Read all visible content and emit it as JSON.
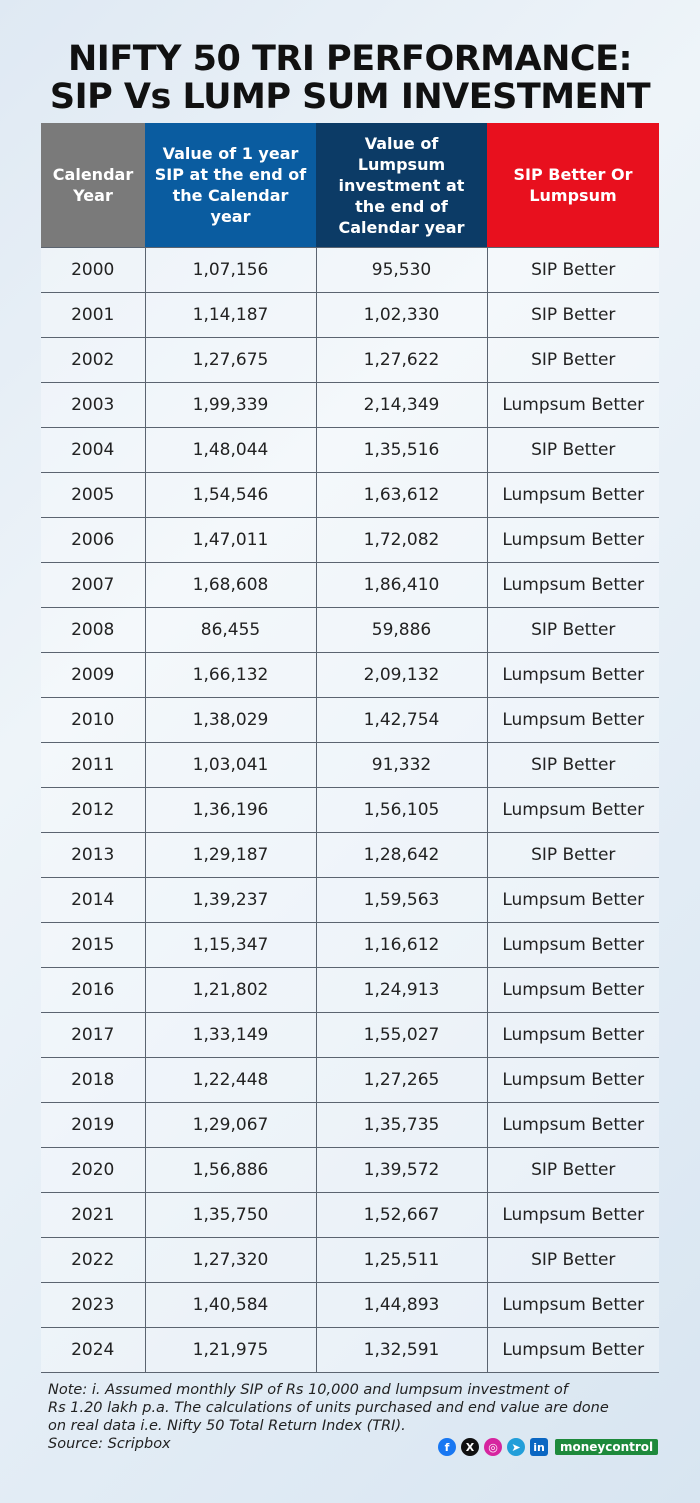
{
  "title": {
    "line1": "NIFTY 50 TRI PERFORMANCE:",
    "line2": "SIP Vs LUMP SUM INVESTMENT"
  },
  "colors": {
    "header_year": "#7a7a7a",
    "header_sip": "#0a5ca0",
    "header_lumpsum": "#0c3b66",
    "header_verdict": "#e8101e"
  },
  "chart_data": {
    "type": "table",
    "columns": [
      "Calendar Year",
      "Value of 1 year SIP at the end of the Calendar year",
      "Value of Lumpsum investment at the end of Calendar year",
      "SIP Better Or Lumpsum"
    ],
    "rows": [
      [
        "2000",
        "1,07,156",
        "95,530",
        "SIP Better"
      ],
      [
        "2001",
        "1,14,187",
        "1,02,330",
        "SIP Better"
      ],
      [
        "2002",
        "1,27,675",
        "1,27,622",
        "SIP Better"
      ],
      [
        "2003",
        "1,99,339",
        "2,14,349",
        "Lumpsum Better"
      ],
      [
        "2004",
        "1,48,044",
        "1,35,516",
        "SIP Better"
      ],
      [
        "2005",
        "1,54,546",
        "1,63,612",
        "Lumpsum Better"
      ],
      [
        "2006",
        "1,47,011",
        "1,72,082",
        "Lumpsum Better"
      ],
      [
        "2007",
        "1,68,608",
        "1,86,410",
        "Lumpsum Better"
      ],
      [
        "2008",
        "86,455",
        "59,886",
        "SIP Better"
      ],
      [
        "2009",
        "1,66,132",
        "2,09,132",
        "Lumpsum Better"
      ],
      [
        "2010",
        "1,38,029",
        "1,42,754",
        "Lumpsum Better"
      ],
      [
        "2011",
        "1,03,041",
        "91,332",
        "SIP Better"
      ],
      [
        "2012",
        "1,36,196",
        "1,56,105",
        "Lumpsum Better"
      ],
      [
        "2013",
        "1,29,187",
        "1,28,642",
        "SIP Better"
      ],
      [
        "2014",
        "1,39,237",
        "1,59,563",
        "Lumpsum Better"
      ],
      [
        "2015",
        "1,15,347",
        "1,16,612",
        "Lumpsum Better"
      ],
      [
        "2016",
        "1,21,802",
        "1,24,913",
        "Lumpsum Better"
      ],
      [
        "2017",
        "1,33,149",
        "1,55,027",
        "Lumpsum Better"
      ],
      [
        "2018",
        "1,22,448",
        "1,27,265",
        "Lumpsum Better"
      ],
      [
        "2019",
        "1,29,067",
        "1,35,735",
        "Lumpsum Better"
      ],
      [
        "2020",
        "1,56,886",
        "1,39,572",
        "SIP Better"
      ],
      [
        "2021",
        "1,35,750",
        "1,52,667",
        "Lumpsum Better"
      ],
      [
        "2022",
        "1,27,320",
        "1,25,511",
        "SIP Better"
      ],
      [
        "2023",
        "1,40,584",
        "1,44,893",
        "Lumpsum Better"
      ],
      [
        "2024",
        "1,21,975",
        "1,32,591",
        "Lumpsum Better"
      ]
    ]
  },
  "note": {
    "line1": "Note: i. Assumed monthly SIP of Rs 10,000 and lumpsum investment of",
    "line2": "Rs 1.20 lakh p.a. The calculations of units purchased and end value are done",
    "line3": "on real data i.e. Nifty 50 Total Return Index (TRI).",
    "source": "Source: Scripbox"
  },
  "social": {
    "icons": [
      "facebook-icon",
      "x-icon",
      "instagram-icon",
      "telegram-icon",
      "linkedin-icon"
    ],
    "brand": "moneycontrol"
  }
}
